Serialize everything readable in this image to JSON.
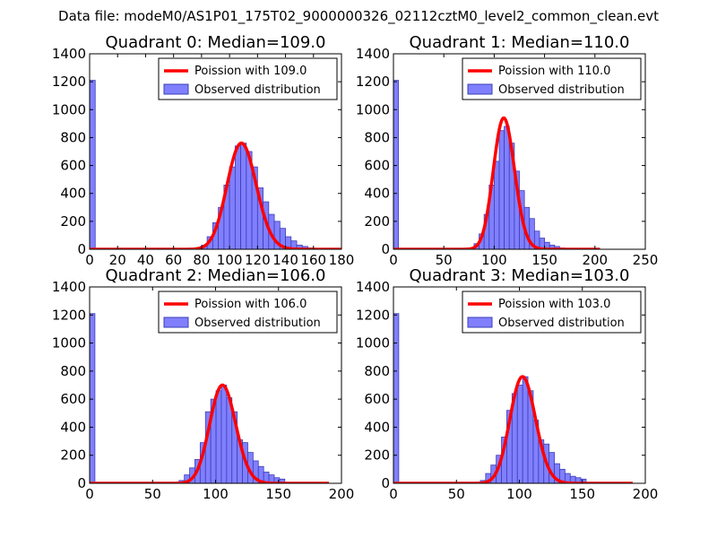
{
  "figure": {
    "suptitle": "Data file: modeM0/AS1P01_175T02_9000000326_02112cztM0_level2_common_clean.evt"
  },
  "colors": {
    "bar_fill": "#8080ff",
    "bar_edge": "#3d3db8",
    "poisson_line": "#ff0000"
  },
  "chart_data": [
    {
      "type": "bar",
      "title": "Quadrant 0: Median=109.0",
      "xlim": [
        0,
        180
      ],
      "ylim": [
        0,
        1400
      ],
      "xticks": [
        0,
        20,
        40,
        60,
        80,
        100,
        120,
        140,
        160,
        180
      ],
      "yticks": [
        0,
        200,
        400,
        600,
        800,
        1000,
        1200,
        1400
      ],
      "legend": [
        "Poission with 109.0",
        "Observed distribution"
      ],
      "legend_position": "top-right",
      "bin_width": 4,
      "bins": [
        [
          0,
          1210
        ],
        [
          76,
          10
        ],
        [
          80,
          30
        ],
        [
          84,
          90
        ],
        [
          88,
          190
        ],
        [
          92,
          300
        ],
        [
          96,
          460
        ],
        [
          100,
          590
        ],
        [
          104,
          740
        ],
        [
          108,
          760
        ],
        [
          112,
          700
        ],
        [
          116,
          590
        ],
        [
          120,
          440
        ],
        [
          124,
          340
        ],
        [
          128,
          250
        ],
        [
          132,
          200
        ],
        [
          136,
          150
        ],
        [
          140,
          90
        ],
        [
          144,
          60
        ],
        [
          148,
          30
        ],
        [
          152,
          20
        ],
        [
          156,
          10
        ]
      ],
      "poisson": {
        "lambda": 109.0,
        "n": 4500,
        "bin_width": 4,
        "x_range": [
          0,
          180
        ],
        "peak": 760
      }
    },
    {
      "type": "bar",
      "title": "Quadrant 1: Median=110.0",
      "xlim": [
        0,
        250
      ],
      "ylim": [
        0,
        1400
      ],
      "xticks": [
        0,
        50,
        100,
        150,
        200,
        250
      ],
      "yticks": [
        0,
        200,
        400,
        600,
        800,
        1000,
        1200,
        1400
      ],
      "legend": [
        "Poission with 110.0",
        "Observed distribution"
      ],
      "legend_position": "top-right",
      "bin_width": 5,
      "bins": [
        [
          0,
          1210
        ],
        [
          75,
          10
        ],
        [
          80,
          40
        ],
        [
          85,
          110
        ],
        [
          90,
          250
        ],
        [
          95,
          460
        ],
        [
          100,
          630
        ],
        [
          105,
          850
        ],
        [
          110,
          880
        ],
        [
          115,
          760
        ],
        [
          120,
          560
        ],
        [
          125,
          420
        ],
        [
          130,
          300
        ],
        [
          135,
          220
        ],
        [
          140,
          130
        ],
        [
          145,
          80
        ],
        [
          150,
          50
        ],
        [
          155,
          30
        ],
        [
          160,
          20
        ],
        [
          165,
          10
        ]
      ],
      "poisson": {
        "lambda": 110.0,
        "n": 4500,
        "bin_width": 5,
        "x_range": [
          0,
          205
        ],
        "peak": 940
      }
    },
    {
      "type": "bar",
      "title": "Quadrant 2: Median=106.0",
      "xlim": [
        0,
        200
      ],
      "ylim": [
        0,
        1400
      ],
      "xticks": [
        0,
        50,
        100,
        150,
        200
      ],
      "yticks": [
        0,
        200,
        400,
        600,
        800,
        1000,
        1200,
        1400
      ],
      "legend": [
        "Poission with 106.0",
        "Observed distribution"
      ],
      "legend_position": "top-right",
      "bin_width": 4.2,
      "bins": [
        [
          0,
          1210
        ],
        [
          71,
          20
        ],
        [
          75.2,
          60
        ],
        [
          79.4,
          110
        ],
        [
          83.6,
          170
        ],
        [
          87.8,
          290
        ],
        [
          92,
          510
        ],
        [
          96.2,
          600
        ],
        [
          100.4,
          660
        ],
        [
          104.6,
          700
        ],
        [
          108.8,
          610
        ],
        [
          113,
          510
        ],
        [
          117.2,
          310
        ],
        [
          121.4,
          290
        ],
        [
          125.6,
          220
        ],
        [
          129.8,
          160
        ],
        [
          134,
          120
        ],
        [
          138.2,
          80
        ],
        [
          142.4,
          60
        ],
        [
          146.6,
          40
        ],
        [
          150.8,
          30
        ]
      ],
      "poisson": {
        "lambda": 106.0,
        "n": 4500,
        "bin_width": 4.2,
        "x_range": [
          0,
          190
        ],
        "peak": 700
      }
    },
    {
      "type": "bar",
      "title": "Quadrant 3: Median=103.0",
      "xlim": [
        0,
        200
      ],
      "ylim": [
        0,
        1400
      ],
      "xticks": [
        0,
        50,
        100,
        150,
        200
      ],
      "yticks": [
        0,
        200,
        400,
        600,
        800,
        1000,
        1200,
        1400
      ],
      "legend": [
        "Poission with 103.0",
        "Observed distribution"
      ],
      "legend_position": "top-right",
      "bin_width": 4.2,
      "bins": [
        [
          0,
          1210
        ],
        [
          69,
          20
        ],
        [
          73.2,
          70
        ],
        [
          77.4,
          130
        ],
        [
          81.6,
          200
        ],
        [
          85.8,
          330
        ],
        [
          90,
          520
        ],
        [
          94.2,
          640
        ],
        [
          98.4,
          700
        ],
        [
          102.6,
          760
        ],
        [
          106.8,
          660
        ],
        [
          111,
          450
        ],
        [
          115.2,
          310
        ],
        [
          119.4,
          280
        ],
        [
          123.6,
          220
        ],
        [
          127.8,
          140
        ],
        [
          132,
          100
        ],
        [
          136.2,
          70
        ],
        [
          140.4,
          50
        ],
        [
          144.6,
          40
        ],
        [
          148.8,
          30
        ]
      ],
      "poisson": {
        "lambda": 103.0,
        "n": 4500,
        "bin_width": 4.2,
        "x_range": [
          0,
          190
        ],
        "peak": 760
      }
    }
  ]
}
